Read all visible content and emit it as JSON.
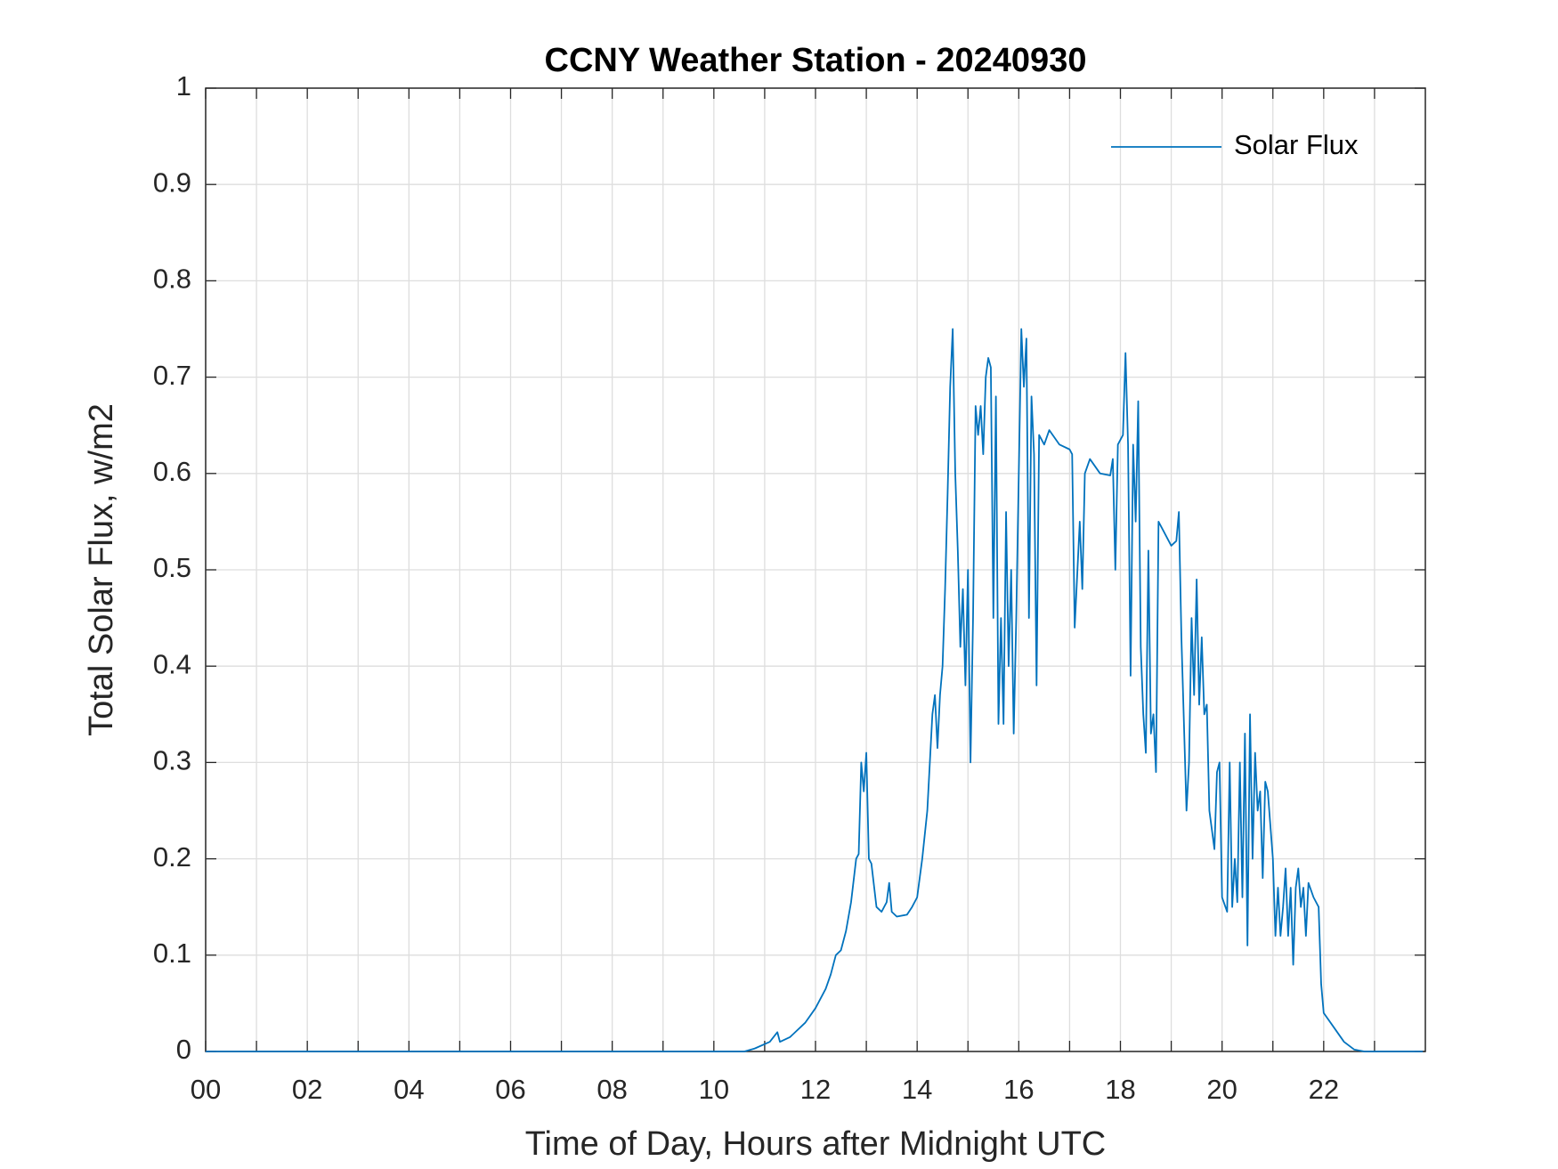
{
  "chart_data": {
    "type": "line",
    "title": "CCNY Weather Station - 20240930",
    "x_label": "Time of Day, Hours after Midnight UTC",
    "y_label": "Total Solar Flux, w/m2",
    "xlim": [
      0,
      24
    ],
    "ylim": [
      0,
      1
    ],
    "xticks": [
      {
        "value": 0,
        "label": "00"
      },
      {
        "value": 2,
        "label": "02"
      },
      {
        "value": 4,
        "label": "04"
      },
      {
        "value": 6,
        "label": "06"
      },
      {
        "value": 8,
        "label": "08"
      },
      {
        "value": 10,
        "label": "10"
      },
      {
        "value": 12,
        "label": "12"
      },
      {
        "value": 14,
        "label": "14"
      },
      {
        "value": 16,
        "label": "16"
      },
      {
        "value": 18,
        "label": "18"
      },
      {
        "value": 20,
        "label": "20"
      },
      {
        "value": 22,
        "label": "22"
      }
    ],
    "xminorticks": [
      1,
      3,
      5,
      7,
      9,
      11,
      13,
      15,
      17,
      19,
      21,
      23
    ],
    "yticks": [
      0,
      0.1,
      0.2,
      0.3,
      0.4,
      0.5,
      0.6,
      0.7,
      0.8,
      0.9,
      1
    ],
    "grid": true,
    "legend_position": "upper-right",
    "x": [
      0,
      10.6,
      10.8,
      11.1,
      11.25,
      11.3,
      11.5,
      11.8,
      12.0,
      12.2,
      12.3,
      12.4,
      12.5,
      12.6,
      12.7,
      12.8,
      12.85,
      12.9,
      12.95,
      13.0,
      13.05,
      13.1,
      13.2,
      13.3,
      13.4,
      13.45,
      13.5,
      13.6,
      13.8,
      13.9,
      14.0,
      14.1,
      14.2,
      14.3,
      14.35,
      14.4,
      14.45,
      14.5,
      14.55,
      14.6,
      14.65,
      14.7,
      14.75,
      14.8,
      14.85,
      14.9,
      14.95,
      15.0,
      15.05,
      15.1,
      15.15,
      15.2,
      15.25,
      15.3,
      15.35,
      15.4,
      15.45,
      15.5,
      15.55,
      15.6,
      15.65,
      15.7,
      15.75,
      15.8,
      15.85,
      15.9,
      15.95,
      16.0,
      16.05,
      16.1,
      16.15,
      16.2,
      16.25,
      16.3,
      16.35,
      16.4,
      16.5,
      16.6,
      16.8,
      17.0,
      17.05,
      17.1,
      17.2,
      17.25,
      17.3,
      17.4,
      17.6,
      17.8,
      17.85,
      17.9,
      17.95,
      18.05,
      18.1,
      18.15,
      18.2,
      18.25,
      18.3,
      18.35,
      18.4,
      18.45,
      18.5,
      18.55,
      18.6,
      18.65,
      18.7,
      18.75,
      18.85,
      19.0,
      19.1,
      19.15,
      19.2,
      19.3,
      19.35,
      19.4,
      19.45,
      19.5,
      19.55,
      19.6,
      19.65,
      19.7,
      19.75,
      19.8,
      19.85,
      19.9,
      19.95,
      20.0,
      20.1,
      20.15,
      20.2,
      20.25,
      20.3,
      20.35,
      20.4,
      20.45,
      20.5,
      20.55,
      20.6,
      20.65,
      20.7,
      20.75,
      20.8,
      20.85,
      20.9,
      21.0,
      21.05,
      21.1,
      21.15,
      21.2,
      21.25,
      21.3,
      21.35,
      21.4,
      21.45,
      21.5,
      21.55,
      21.6,
      21.65,
      21.7,
      21.8,
      21.9,
      21.95,
      22.0,
      22.2,
      22.4,
      22.6,
      22.8,
      23.95
    ],
    "series": [
      {
        "name": "Solar Flux",
        "color": "#0072bd",
        "values": [
          0,
          0,
          0.003,
          0.01,
          0.02,
          0.01,
          0.015,
          0.03,
          0.045,
          0.065,
          0.08,
          0.1,
          0.105,
          0.125,
          0.155,
          0.2,
          0.205,
          0.3,
          0.27,
          0.31,
          0.2,
          0.195,
          0.15,
          0.145,
          0.155,
          0.175,
          0.145,
          0.14,
          0.142,
          0.15,
          0.16,
          0.2,
          0.25,
          0.35,
          0.37,
          0.315,
          0.37,
          0.4,
          0.48,
          0.58,
          0.69,
          0.75,
          0.6,
          0.52,
          0.42,
          0.48,
          0.38,
          0.5,
          0.3,
          0.45,
          0.67,
          0.64,
          0.67,
          0.62,
          0.7,
          0.72,
          0.71,
          0.45,
          0.68,
          0.34,
          0.45,
          0.34,
          0.56,
          0.4,
          0.5,
          0.33,
          0.45,
          0.6,
          0.75,
          0.69,
          0.74,
          0.45,
          0.68,
          0.62,
          0.38,
          0.64,
          0.63,
          0.645,
          0.63,
          0.625,
          0.62,
          0.44,
          0.55,
          0.48,
          0.6,
          0.615,
          0.6,
          0.598,
          0.615,
          0.5,
          0.63,
          0.64,
          0.725,
          0.63,
          0.39,
          0.63,
          0.55,
          0.675,
          0.42,
          0.35,
          0.31,
          0.52,
          0.33,
          0.35,
          0.29,
          0.55,
          0.54,
          0.525,
          0.53,
          0.56,
          0.43,
          0.25,
          0.3,
          0.45,
          0.37,
          0.49,
          0.36,
          0.43,
          0.35,
          0.36,
          0.25,
          0.23,
          0.21,
          0.29,
          0.3,
          0.16,
          0.145,
          0.3,
          0.15,
          0.2,
          0.155,
          0.3,
          0.16,
          0.33,
          0.11,
          0.35,
          0.2,
          0.31,
          0.25,
          0.27,
          0.18,
          0.28,
          0.27,
          0.2,
          0.12,
          0.17,
          0.12,
          0.15,
          0.19,
          0.12,
          0.17,
          0.09,
          0.17,
          0.19,
          0.15,
          0.17,
          0.12,
          0.175,
          0.16,
          0.15,
          0.07,
          0.04,
          0.025,
          0.01,
          0.002,
          0,
          0
        ]
      }
    ]
  }
}
